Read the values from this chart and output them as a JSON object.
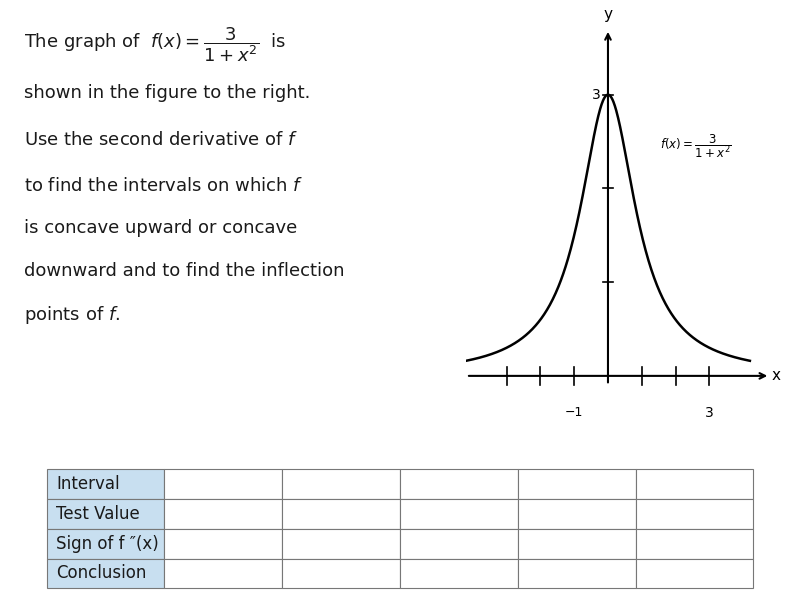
{
  "body_lines": [
    "shown in the figure to the right.",
    "Use the second derivative of $f$",
    "to find the intervals on which $f$",
    "is concave upward or concave",
    "downward and to find the inflection",
    "points of $f$."
  ],
  "graph_ylabel": "y",
  "graph_xlabel": "x",
  "graph_y3_label": "3",
  "graph_x3_label": "3",
  "graph_xneg1_label": "−1",
  "table_headers": [
    "Interval",
    "Test Value",
    "Sign of f ″(x)",
    "Conclusion"
  ],
  "table_cols": 6,
  "table_header_bg": "#c8dff0",
  "background_color": "#ffffff",
  "curve_color": "#000000",
  "axis_color": "#000000",
  "text_color": "#1a1a1a",
  "table_border_color": "#777777",
  "xlim": [
    -4.2,
    4.8
  ],
  "ylim": [
    -0.45,
    3.7
  ]
}
